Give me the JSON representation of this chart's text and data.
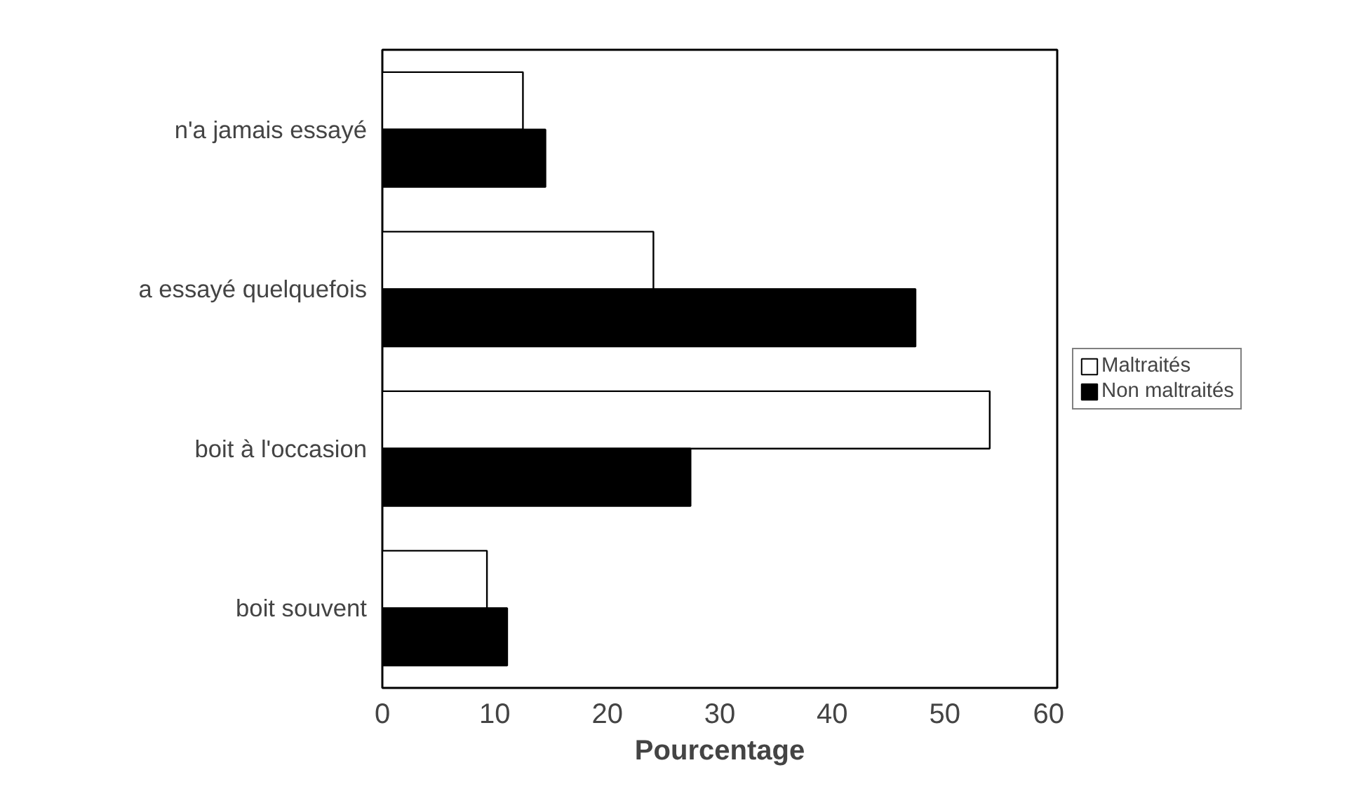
{
  "chart_data": {
    "type": "bar",
    "orientation": "horizontal",
    "xlabel": "Pourcentage",
    "categories": [
      "n'a jamais essayé",
      "a essayé quelquefois",
      "boit à l'occasion",
      "boit souvent"
    ],
    "series": [
      {
        "name": "Maltraités",
        "color": "#ffffff",
        "values": [
          12.5,
          24.1,
          54.0,
          9.3
        ]
      },
      {
        "name": "Non maltraités",
        "color": "#000000",
        "values": [
          14.5,
          47.4,
          27.4,
          11.1
        ]
      }
    ],
    "xlim": [
      0,
      60
    ],
    "xticks": [
      0,
      10,
      20,
      30,
      40,
      50,
      60
    ],
    "grid": false,
    "legend": "right"
  }
}
